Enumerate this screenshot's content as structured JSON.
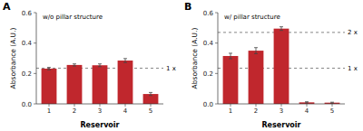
{
  "chart_data": [
    {
      "type": "bar",
      "label": "A",
      "title": "w/o pillar structure",
      "categories": [
        "1",
        "2",
        "3",
        "4",
        "5"
      ],
      "values": [
        0.232,
        0.256,
        0.254,
        0.285,
        0.065
      ],
      "errors": [
        0.008,
        0.007,
        0.009,
        0.013,
        0.01
      ],
      "color": "#C0272D",
      "reference_lines": [
        {
          "value": 0.235,
          "label": "1 x"
        }
      ],
      "ylim": [
        0.0,
        0.6
      ],
      "yticks": [
        {
          "value": 0.0,
          "label": "0.0"
        },
        0.2,
        0.4,
        0.6
      ],
      "x_label": "Reservoir",
      "y_label": "Absorbance (A.U.)"
    },
    {
      "type": "bar",
      "label": "B",
      "title": "w/ pillar structure",
      "categories": [
        "1",
        "2",
        "3",
        "4",
        "5"
      ],
      "values": [
        0.315,
        0.35,
        0.495,
        0.01,
        0.008
      ],
      "errors": [
        0.018,
        0.02,
        0.012,
        0.004,
        0.003
      ],
      "color": "#C0272D",
      "reference_lines": [
        {
          "value": 0.235,
          "label": "1 x"
        },
        {
          "value": 0.47,
          "label": "2 x"
        }
      ],
      "ylim": [
        0.0,
        0.6
      ],
      "yticks": [
        {
          "value": 0.0,
          "label": "0.0"
        },
        0.2,
        0.4,
        0.6
      ],
      "x_label": "Reservoir",
      "y_label": "Absorbance (A.U.)"
    }
  ]
}
